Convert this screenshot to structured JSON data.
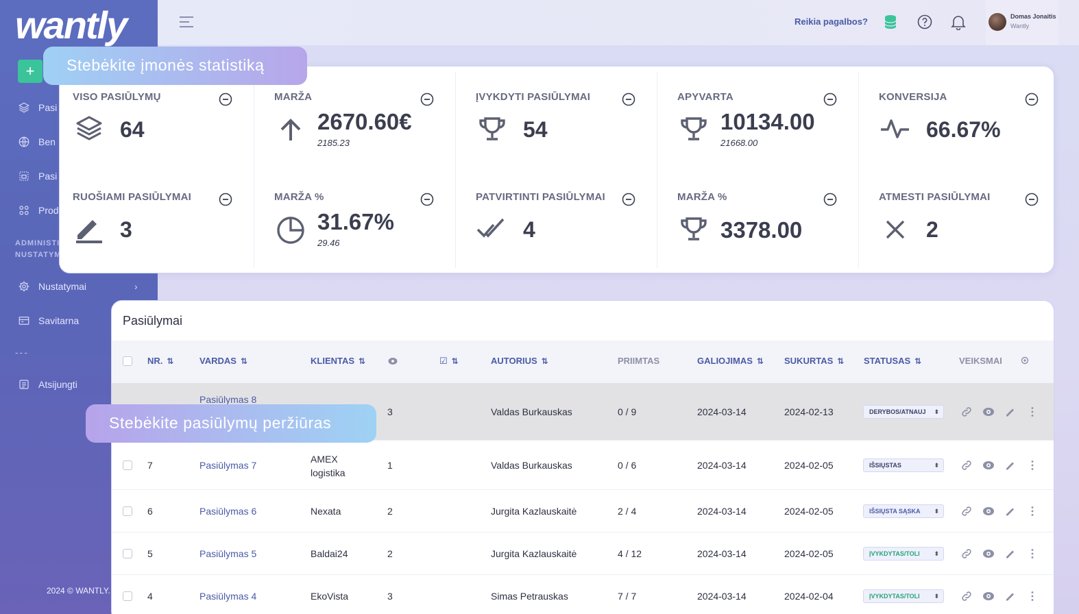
{
  "app": {
    "logo": "wantly",
    "copyright": "2024 © WANTLY."
  },
  "sidebar": {
    "add_label": "+",
    "items": [
      {
        "label": "Pasi",
        "icon": "layers-icon"
      },
      {
        "label": "Ben",
        "icon": "globe-icon"
      },
      {
        "label": "Pasi",
        "icon": "building-icon"
      },
      {
        "label": "Prod",
        "icon": "grid-icon"
      }
    ],
    "section_line1": "ADMINISTI",
    "section_line2": "NUSTATYM",
    "settings_label": "Nustatymai",
    "selfservice_label": "Savitarna",
    "separator": "---",
    "logout_label": "Atsijungti"
  },
  "topbar": {
    "help": "Reikia pagalbos?",
    "user_name": "Domas Jonaitis",
    "user_org": "Wantly"
  },
  "tooltips": {
    "stats": "Stebėkite įmonės statistiką",
    "views": "Stebėkite pasiūlymų peržiūras"
  },
  "stats": [
    {
      "label": "VISO PASIŪLYMŲ",
      "value": "64",
      "sub": "",
      "icon": "layers-icon"
    },
    {
      "label": "MARŽA",
      "value": "2670.60€",
      "sub": "2185.23",
      "icon": "arrow-up-icon"
    },
    {
      "label": "ĮVYKDYTI PASIŪLYMAI",
      "value": "54",
      "sub": "",
      "icon": "trophy-icon"
    },
    {
      "label": "APYVARTA",
      "value": "10134.00",
      "sub": "21668.00",
      "icon": "trophy-icon"
    },
    {
      "label": "KONVERSIJA",
      "value": "66.67%",
      "sub": "",
      "icon": "activity-icon"
    },
    {
      "label": "RUOŠIAMI PASIŪLYMAI",
      "value": "3",
      "sub": "",
      "icon": "pen-icon"
    },
    {
      "label": "MARŽA %",
      "value": "31.67%",
      "sub": "29.46",
      "icon": "pie-icon"
    },
    {
      "label": "PATVIRTINTI PASIŪLYMAI",
      "value": "4",
      "sub": "",
      "icon": "double-check-icon"
    },
    {
      "label": "MARŽA %",
      "value": "3378.00",
      "sub": "",
      "icon": "trophy-icon"
    },
    {
      "label": "ATMESTI PASIŪLYMAI",
      "value": "2",
      "sub": "",
      "icon": "close-icon"
    }
  ],
  "table": {
    "title": "Pasiūlymai",
    "headers": {
      "nr": "NR.",
      "name": "VARDAS",
      "client": "KLIENTAS",
      "author": "AUTORIUS",
      "accepted": "PRIIMTAS",
      "valid": "GALIOJIMAS",
      "created": "SUKURTAS",
      "status": "STATUSAS",
      "actions": "VEIKSMAI",
      "sort": "⇅"
    },
    "rows": [
      {
        "nr": "",
        "name": "Pasiūlymas 8",
        "client": "",
        "client2": "",
        "views": "3",
        "author": "Valdas Burkauskas",
        "accepted": "0 / 9",
        "valid": "2024-03-14",
        "created": "2024-02-13",
        "status": "DERYBOS/ATNAUJ",
        "status_color": "#3a3f66"
      },
      {
        "nr": "7",
        "name": "Pasiūlymas 7",
        "client": "AMEX",
        "client2": "logistika",
        "views": "1",
        "author": "Valdas Burkauskas",
        "accepted": "0 / 6",
        "valid": "2024-03-14",
        "created": "2024-02-05",
        "status": "IŠSIŲSTAS",
        "status_color": "#3a3f66"
      },
      {
        "nr": "6",
        "name": "Pasiūlymas 6",
        "client": "Nexata",
        "client2": "",
        "views": "2",
        "author": "Jurgita Kazlauskaitė",
        "accepted": "2 / 4",
        "valid": "2024-03-14",
        "created": "2024-02-05",
        "status": "IŠSIŲSTA SĄSKA",
        "status_color": "#4a5aa6"
      },
      {
        "nr": "5",
        "name": "Pasiūlymas 5",
        "client": "Baldai24",
        "client2": "",
        "views": "2",
        "author": "Jurgita Kazlauskaitė",
        "accepted": "4 / 12",
        "valid": "2024-03-14",
        "created": "2024-02-05",
        "status": "ĮVYKDYTAS/TOLI",
        "status_color": "#27a37a"
      },
      {
        "nr": "4",
        "name": "Pasiūlymas 4",
        "client": "EkoVista",
        "client2": "",
        "views": "3",
        "author": "Simas Petrauskas",
        "accepted": "7 / 7",
        "valid": "2024-03-14",
        "created": "2024-02-04",
        "status": "ĮVYKDYTAS/TOLI",
        "status_color": "#27a37a"
      }
    ]
  },
  "colors": {
    "accent": "#4a5aa6",
    "green": "#3bc49a",
    "sidebar": "#5c6dbf"
  }
}
